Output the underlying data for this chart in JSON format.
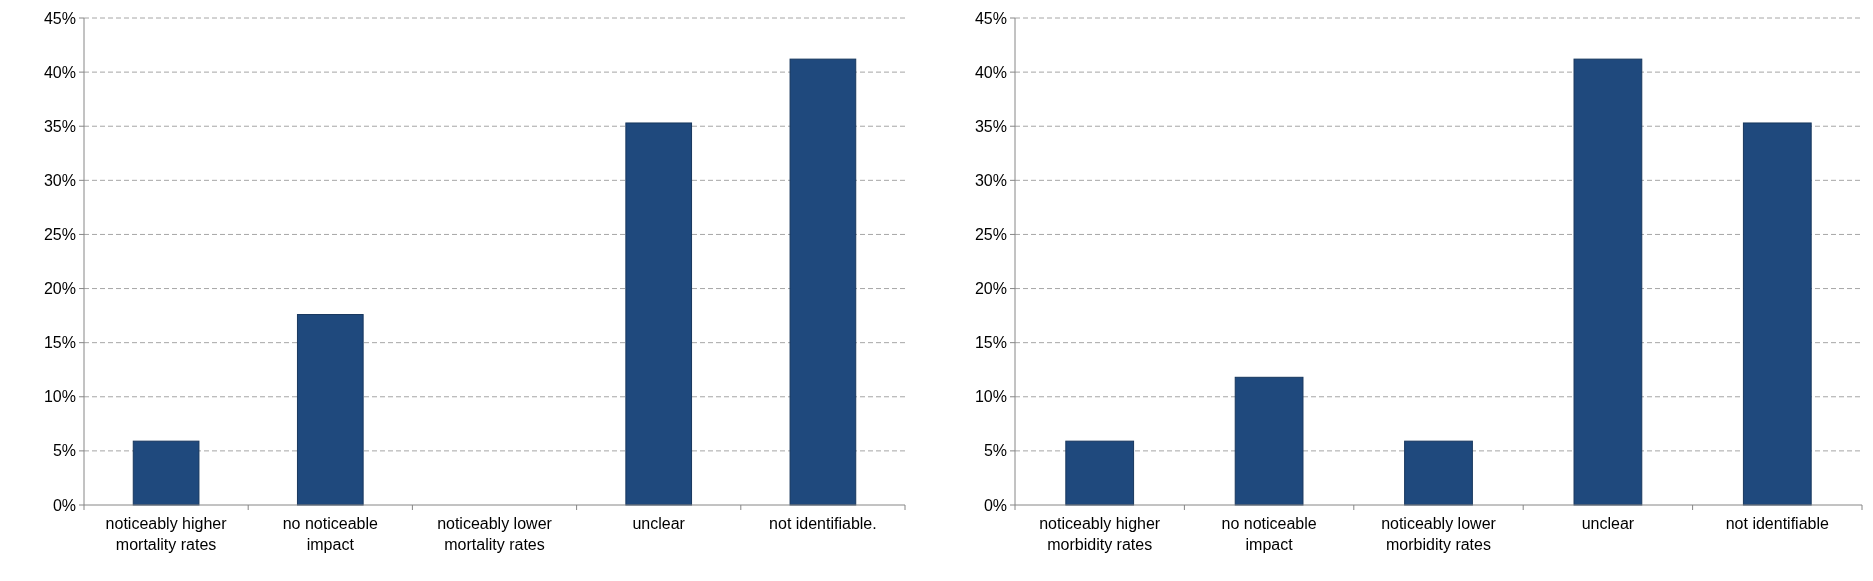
{
  "chart_data": [
    {
      "type": "bar",
      "categories": [
        "noticeably higher mortality rates",
        "no noticeable impact",
        "noticeably lower mortality rates",
        "unclear",
        "not identifiable."
      ],
      "values": [
        5.9,
        17.6,
        0,
        35.3,
        41.2
      ],
      "color": "#1f497d",
      "ylim": [
        0,
        45
      ],
      "yticks": [
        {
          "value": 0,
          "label": "0%"
        },
        {
          "value": 5,
          "label": "5%"
        },
        {
          "value": 10,
          "label": "10%"
        },
        {
          "value": 15,
          "label": "15%"
        },
        {
          "value": 20,
          "label": "20%"
        },
        {
          "value": 25,
          "label": "25%"
        },
        {
          "value": 30,
          "label": "30%"
        },
        {
          "value": 35,
          "label": "35%"
        },
        {
          "value": 40,
          "label": "40%"
        },
        {
          "value": 45,
          "label": "45%"
        }
      ],
      "grid": "y"
    },
    {
      "type": "bar",
      "categories": [
        "noticeably higher morbidity rates",
        "no noticeable impact",
        "noticeably lower morbidity rates",
        "unclear",
        "not identifiable"
      ],
      "values": [
        5.9,
        11.8,
        5.9,
        41.2,
        35.3
      ],
      "color": "#1f497d",
      "ylim": [
        0,
        45
      ],
      "yticks": [
        {
          "value": 0,
          "label": "0%"
        },
        {
          "value": 5,
          "label": "5%"
        },
        {
          "value": 10,
          "label": "10%"
        },
        {
          "value": 15,
          "label": "15%"
        },
        {
          "value": 20,
          "label": "20%"
        },
        {
          "value": 25,
          "label": "25%"
        },
        {
          "value": 30,
          "label": "30%"
        },
        {
          "value": 35,
          "label": "35%"
        },
        {
          "value": 40,
          "label": "40%"
        },
        {
          "value": 45,
          "label": "45%"
        }
      ],
      "grid": "y"
    }
  ]
}
